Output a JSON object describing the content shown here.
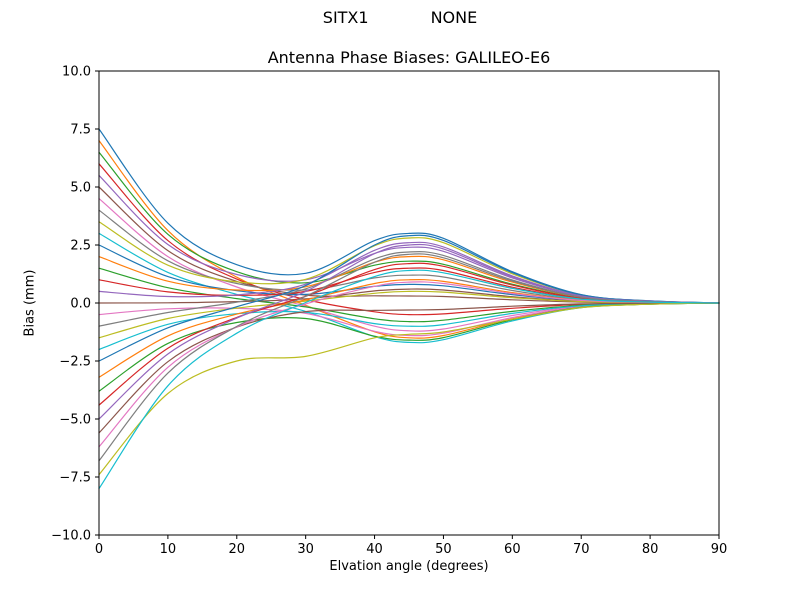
{
  "figure": {
    "suptitle_left": "SITX1",
    "suptitle_right": "NONE",
    "background": "#ffffff",
    "frame_color": "#000000"
  },
  "chart_data": {
    "type": "line",
    "title": "Antenna Phase Biases: GALILEO-E6",
    "xlabel": "Elvation angle (degrees)",
    "ylabel": "Bias (mm)",
    "xlim": [
      0,
      90
    ],
    "ylim": [
      -10,
      10
    ],
    "grid": false,
    "legend": "none",
    "xtick_values": [
      0,
      10,
      20,
      30,
      40,
      50,
      60,
      70,
      80,
      90
    ],
    "xtick_labels": [
      "0",
      "10",
      "20",
      "30",
      "40",
      "50",
      "60",
      "70",
      "80",
      "90"
    ],
    "ytick_values": [
      10,
      7.5,
      5,
      2.5,
      0,
      -2.5,
      -5,
      -7.5,
      -10
    ],
    "ytick_labels": [
      "10.0",
      "7.5",
      "5.0",
      "2.5",
      "0.0",
      "−2.5",
      "−5.0",
      "−7.5",
      "−10.0"
    ],
    "x": [
      0,
      10,
      20,
      30,
      40,
      45,
      50,
      60,
      70,
      80,
      90
    ],
    "series": [
      {
        "name": "line-01",
        "color": "#1f77b4",
        "y": [
          7.5,
          3.44,
          1.65,
          1.28,
          2.69,
          3.0,
          2.79,
          1.35,
          0.36,
          0.09,
          0
        ]
      },
      {
        "name": "line-02",
        "color": "#ff7f0e",
        "y": [
          7.0,
          3.12,
          1.11,
          -0.1,
          -1.24,
          -1.5,
          -1.4,
          -0.68,
          -0.18,
          -0.05,
          0
        ]
      },
      {
        "name": "line-03",
        "color": "#2ca02c",
        "y": [
          6.5,
          2.96,
          1.35,
          0.87,
          1.63,
          1.8,
          1.67,
          0.81,
          0.22,
          0.05,
          0
        ]
      },
      {
        "name": "line-04",
        "color": "#d62728",
        "y": [
          6.0,
          2.69,
          1.03,
          0.15,
          -0.38,
          -0.5,
          -0.47,
          -0.23,
          -0.06,
          -0.02,
          0
        ]
      },
      {
        "name": "line-05",
        "color": "#9467bd",
        "y": [
          5.5,
          2.52,
          1.23,
          1.0,
          2.14,
          2.4,
          2.23,
          1.08,
          0.29,
          0.07,
          0
        ]
      },
      {
        "name": "line-06",
        "color": "#8c564b",
        "y": [
          5.0,
          2.26,
          0.93,
          0.34,
          0.31,
          0.3,
          0.28,
          0.14,
          0.04,
          0.01,
          0
        ]
      },
      {
        "name": "line-07",
        "color": "#e377c2",
        "y": [
          4.5,
          2.0,
          0.69,
          -0.14,
          -1.0,
          -1.2,
          -1.12,
          -0.54,
          -0.14,
          -0.04,
          0
        ]
      },
      {
        "name": "line-08",
        "color": "#7f7f7f",
        "y": [
          4.0,
          1.82,
          0.84,
          0.56,
          1.08,
          1.2,
          1.12,
          0.54,
          0.14,
          0.04,
          0
        ]
      },
      {
        "name": "line-09",
        "color": "#bcbd22",
        "y": [
          3.5,
          1.63,
          0.91,
          1.02,
          2.47,
          2.8,
          2.6,
          1.26,
          0.34,
          0.08,
          0
        ]
      },
      {
        "name": "line-10",
        "color": "#17becf",
        "y": [
          3.0,
          1.32,
          0.37,
          -0.36,
          -1.45,
          -1.7,
          -1.58,
          -0.77,
          -0.2,
          -0.05,
          0
        ]
      },
      {
        "name": "line-11",
        "color": "#1f77b4",
        "y": [
          2.5,
          1.14,
          0.53,
          0.37,
          0.72,
          0.8,
          0.74,
          0.36,
          0.1,
          0.02,
          0
        ]
      },
      {
        "name": "line-12",
        "color": "#ff7f0e",
        "y": [
          2.0,
          0.94,
          0.56,
          0.7,
          1.76,
          2.0,
          1.86,
          0.9,
          0.24,
          0.06,
          0
        ]
      },
      {
        "name": "line-13",
        "color": "#2ca02c",
        "y": [
          1.5,
          0.66,
          0.19,
          -0.17,
          -0.68,
          -0.8,
          -0.74,
          -0.36,
          -0.1,
          -0.02,
          0
        ]
      },
      {
        "name": "line-14",
        "color": "#d62728",
        "y": [
          1.0,
          0.48,
          0.33,
          0.5,
          1.32,
          1.5,
          1.4,
          0.68,
          0.18,
          0.05,
          0
        ]
      },
      {
        "name": "line-15",
        "color": "#9467bd",
        "y": [
          0.5,
          0.28,
          0.35,
          0.81,
          2.27,
          2.6,
          2.42,
          1.17,
          0.31,
          0.08,
          0
        ]
      },
      {
        "name": "line-16",
        "color": "#8c564b",
        "y": [
          0.0,
          0.01,
          0.06,
          0.18,
          0.52,
          0.6,
          0.56,
          0.27,
          0.07,
          0.02,
          0
        ]
      },
      {
        "name": "line-17",
        "color": "#e377c2",
        "y": [
          -0.5,
          -0.25,
          -0.23,
          -0.45,
          -1.22,
          -1.4,
          -1.3,
          -0.63,
          -0.17,
          -0.04,
          0
        ]
      },
      {
        "name": "line-18",
        "color": "#7f7f7f",
        "y": [
          -1.0,
          -0.41,
          0.04,
          0.61,
          1.9,
          2.2,
          2.05,
          0.99,
          0.26,
          0.07,
          0
        ]
      },
      {
        "name": "line-19",
        "color": "#bcbd22",
        "y": [
          -1.5,
          -0.67,
          -0.22,
          0.08,
          0.42,
          0.5,
          0.47,
          0.23,
          0.06,
          0.02,
          0
        ]
      },
      {
        "name": "line-20",
        "color": "#17becf",
        "y": [
          -2.0,
          -0.92,
          -0.46,
          -0.4,
          -0.89,
          -1.0,
          -0.93,
          -0.45,
          -0.12,
          -0.03,
          0
        ]
      },
      {
        "name": "line-21",
        "color": "#1f77b4",
        "y": [
          -2.5,
          -1.07,
          -0.16,
          0.75,
          2.5,
          2.9,
          2.7,
          1.31,
          0.35,
          0.09,
          0
        ]
      },
      {
        "name": "line-22",
        "color": "#ff7f0e",
        "y": [
          -3.2,
          -1.42,
          -0.48,
          0.14,
          0.84,
          1.0,
          0.93,
          0.45,
          0.12,
          0.03,
          0
        ]
      },
      {
        "name": "line-23",
        "color": "#2ca02c",
        "y": [
          -3.8,
          -1.74,
          -0.84,
          -0.67,
          -1.43,
          -1.6,
          -1.49,
          -0.72,
          -0.19,
          -0.05,
          0
        ]
      },
      {
        "name": "line-24",
        "color": "#d62728",
        "y": [
          -4.4,
          -1.95,
          -0.62,
          0.29,
          1.44,
          1.7,
          1.58,
          0.77,
          0.2,
          0.05,
          0
        ]
      },
      {
        "name": "line-25",
        "color": "#9467bd",
        "y": [
          -5.0,
          -2.2,
          -0.65,
          0.5,
          2.13,
          2.5,
          2.33,
          1.13,
          0.3,
          0.08,
          0
        ]
      },
      {
        "name": "line-26",
        "color": "#8c564b",
        "y": [
          -5.6,
          -2.53,
          -1.04,
          -0.37,
          -0.32,
          -0.3,
          -0.28,
          -0.14,
          -0.04,
          -0.01,
          0
        ]
      },
      {
        "name": "line-27",
        "color": "#e377c2",
        "y": [
          -6.2,
          -2.77,
          -1.03,
          -0.04,
          0.72,
          0.9,
          0.84,
          0.41,
          0.11,
          0.03,
          0
        ]
      },
      {
        "name": "line-28",
        "color": "#7f7f7f",
        "y": [
          -6.8,
          -3.02,
          -1.01,
          0.29,
          1.76,
          2.1,
          1.95,
          0.95,
          0.25,
          0.06,
          0
        ]
      },
      {
        "name": "line-29",
        "color": "#bcbd22",
        "y": [
          -7.4,
          -3.9,
          -2.5,
          -2.3,
          -1.5,
          -1.35,
          -1.25,
          -0.7,
          -0.2,
          -0.05,
          0
        ]
      },
      {
        "name": "line-30",
        "color": "#17becf",
        "y": [
          -8.0,
          -3.57,
          -1.3,
          0.02,
          1.14,
          1.4,
          1.3,
          0.63,
          0.17,
          0.04,
          0
        ]
      }
    ]
  }
}
